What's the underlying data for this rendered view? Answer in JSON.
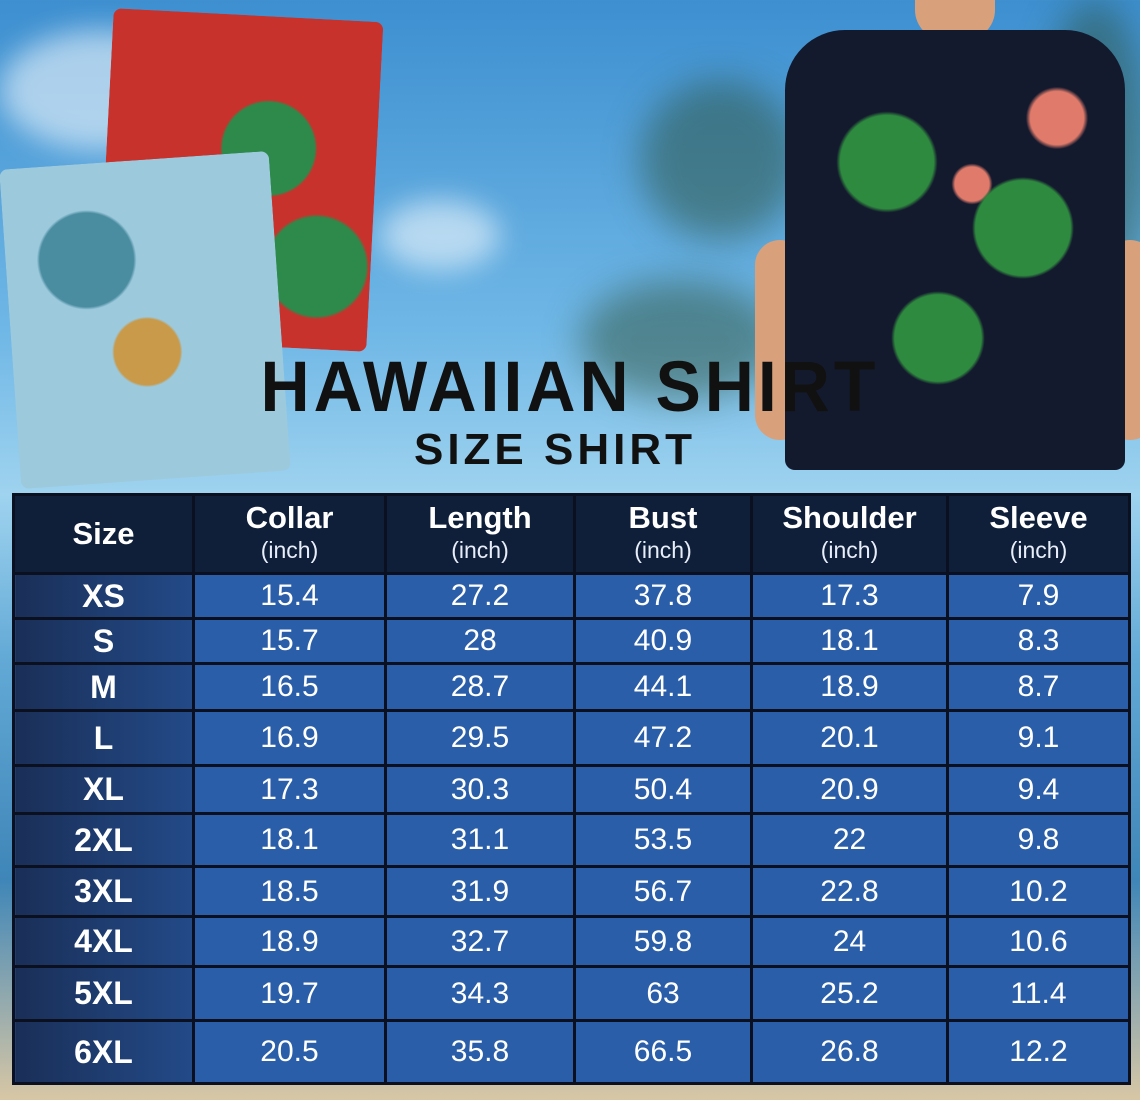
{
  "title": "HAWAIIAN SHIRT",
  "subtitle": "SIZE SHIRT",
  "colors": {
    "header": "#0f1f3a",
    "cell": "#2b5ea8",
    "size_column": "#234a88",
    "border": "#0a1020"
  },
  "table": {
    "headers": [
      {
        "label": "Size",
        "unit": ""
      },
      {
        "label": "Collar",
        "unit": "(inch)"
      },
      {
        "label": "Length",
        "unit": "(inch)"
      },
      {
        "label": "Bust",
        "unit": "(inch)"
      },
      {
        "label": "Shoulder",
        "unit": "(inch)"
      },
      {
        "label": "Sleeve",
        "unit": "(inch)"
      }
    ],
    "rows": [
      [
        "XS",
        "15.4",
        "27.2",
        "37.8",
        "17.3",
        "7.9"
      ],
      [
        "S",
        "15.7",
        "28",
        "40.9",
        "18.1",
        "8.3"
      ],
      [
        "M",
        "16.5",
        "28.7",
        "44.1",
        "18.9",
        "8.7"
      ],
      [
        "L",
        "16.9",
        "29.5",
        "47.2",
        "20.1",
        "9.1"
      ],
      [
        "XL",
        "17.3",
        "30.3",
        "50.4",
        "20.9",
        "9.4"
      ],
      [
        "2XL",
        "18.1",
        "31.1",
        "53.5",
        "22",
        "9.8"
      ],
      [
        "3XL",
        "18.5",
        "31.9",
        "56.7",
        "22.8",
        "10.2"
      ],
      [
        "4XL",
        "18.9",
        "32.7",
        "59.8",
        "24",
        "10.6"
      ],
      [
        "5XL",
        "19.7",
        "34.3",
        "63",
        "25.2",
        "11.4"
      ],
      [
        "6XL",
        "20.5",
        "35.8",
        "66.5",
        "26.8",
        "12.2"
      ]
    ]
  }
}
